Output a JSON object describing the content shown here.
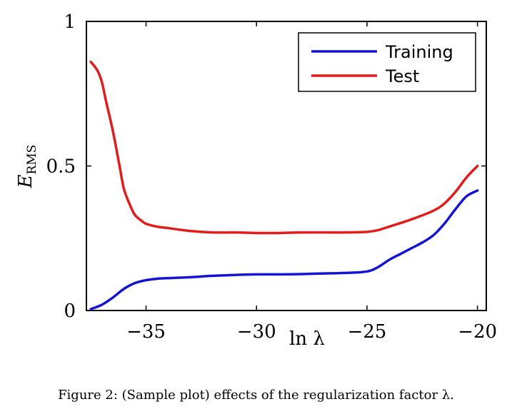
{
  "chart_data": {
    "type": "line",
    "xlabel": "ln λ",
    "ylabel_main": "E",
    "ylabel_sub": "RMS",
    "xlim": [
      -37.7,
      -19.6
    ],
    "ylim": [
      0,
      1
    ],
    "xticks": [
      -35,
      -30,
      -25,
      -20
    ],
    "xtick_labels": [
      "−35",
      "−30",
      "−25",
      "−20"
    ],
    "yticks": [
      0,
      0.5,
      1
    ],
    "ytick_labels": [
      "0",
      "0.5",
      "1"
    ],
    "grid": false,
    "legend_position": "top-right",
    "series": [
      {
        "name": "Training",
        "color": "#1414d2",
        "x": [
          -37.5,
          -37.0,
          -36.5,
          -36.0,
          -35.5,
          -35.0,
          -34.5,
          -34.0,
          -33.0,
          -32.0,
          -31.0,
          -30.0,
          -29.0,
          -28.0,
          -27.0,
          -26.0,
          -25.0,
          -24.5,
          -24.0,
          -23.5,
          -23.0,
          -22.5,
          -22.0,
          -21.5,
          -21.0,
          -20.5,
          -20.0
        ],
        "y": [
          0.005,
          0.02,
          0.045,
          0.075,
          0.095,
          0.105,
          0.11,
          0.112,
          0.115,
          0.12,
          0.123,
          0.125,
          0.125,
          0.126,
          0.128,
          0.13,
          0.135,
          0.15,
          0.175,
          0.195,
          0.215,
          0.235,
          0.26,
          0.3,
          0.35,
          0.395,
          0.415
        ]
      },
      {
        "name": "Test",
        "color": "#e01c1c",
        "x": [
          -37.5,
          -37.2,
          -37.0,
          -36.8,
          -36.5,
          -36.2,
          -36.0,
          -35.7,
          -35.5,
          -35.2,
          -35.0,
          -34.5,
          -34.0,
          -33.0,
          -32.0,
          -31.0,
          -30.0,
          -29.0,
          -28.0,
          -27.0,
          -26.0,
          -25.0,
          -24.5,
          -24.0,
          -23.0,
          -22.0,
          -21.5,
          -21.0,
          -20.5,
          -20.0
        ],
        "y": [
          0.86,
          0.83,
          0.79,
          0.72,
          0.62,
          0.5,
          0.42,
          0.36,
          0.33,
          0.31,
          0.3,
          0.29,
          0.285,
          0.275,
          0.27,
          0.27,
          0.268,
          0.268,
          0.27,
          0.27,
          0.27,
          0.272,
          0.278,
          0.29,
          0.315,
          0.345,
          0.37,
          0.41,
          0.46,
          0.5
        ]
      }
    ]
  },
  "caption": "Figure 2: (Sample plot) effects of the regularization factor λ."
}
